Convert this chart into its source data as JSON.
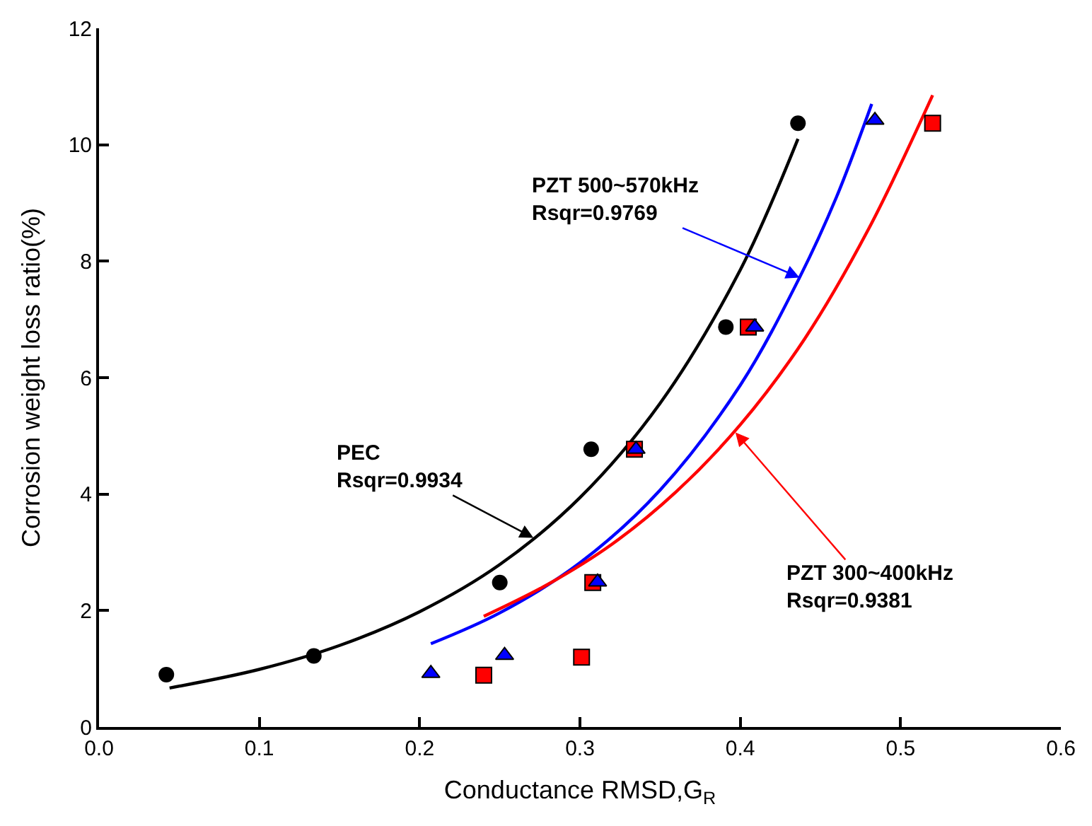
{
  "chart_data": {
    "type": "scatter",
    "xlabel": "Conductance RMSD,G$_{R}$",
    "ylabel": "Corrosion weight loss ratio(%)",
    "xlim": [
      0.0,
      0.6
    ],
    "xticks": [
      {
        "value": 0,
        "label": "0.0"
      },
      0.1,
      0.2,
      0.3,
      0.4,
      0.5,
      0.6
    ],
    "ylim": [
      0,
      12
    ],
    "yticks": [
      0,
      2,
      4,
      6,
      8,
      10,
      12
    ],
    "series": [
      {
        "marker": "circle",
        "color": "#000000",
        "x": [
          0.042,
          0.134,
          0.25,
          0.307,
          0.391,
          0.436
        ],
        "values": [
          0.9,
          1.22,
          2.48,
          4.77,
          6.87,
          10.37
        ]
      },
      {
        "marker": "triangle",
        "color": "#0000ff",
        "x": [
          0.207,
          0.253,
          0.311,
          0.335,
          0.409,
          0.484
        ],
        "values": [
          0.92,
          1.23,
          2.49,
          4.77,
          6.87,
          10.42
        ]
      },
      {
        "marker": "square",
        "color": "#ff0000",
        "x": [
          0.24,
          0.301,
          0.308,
          0.334,
          0.405,
          0.52
        ],
        "values": [
          0.89,
          1.2,
          2.48,
          4.77,
          6.87,
          10.37
        ]
      },
      {
        "type": "line",
        "marker": "none",
        "color": "#000000",
        "x": [
          0.044,
          0.1,
          0.15,
          0.2,
          0.25,
          0.3,
          0.35,
          0.4,
          0.436
        ],
        "values": [
          0.67,
          0.99,
          1.4,
          1.98,
          2.79,
          3.94,
          5.56,
          7.85,
          10.1
        ]
      },
      {
        "type": "line",
        "marker": "none",
        "color": "#0000ff",
        "x": [
          0.207,
          0.25,
          0.3,
          0.35,
          0.4,
          0.437,
          0.46,
          0.482
        ],
        "values": [
          1.43,
          1.96,
          2.82,
          4.07,
          5.87,
          7.72,
          9.1,
          10.7
        ]
      },
      {
        "type": "line",
        "marker": "none",
        "color": "#ff0000",
        "x": [
          0.24,
          0.28,
          0.32,
          0.36,
          0.4,
          0.44,
          0.48,
          0.52
        ],
        "values": [
          1.9,
          2.45,
          3.14,
          4.04,
          5.19,
          6.66,
          8.55,
          10.85
        ]
      }
    ],
    "annotations": [
      {
        "text": "PEC\nRsqr=0.9934",
        "x": 0.271,
        "y": 3.25
      },
      {
        "text": "PZT 500~570kHz\nRsqr=0.9769",
        "x": 0.437,
        "y": 7.72
      },
      {
        "text": "PZT 300~400kHz\nRsqr=0.9381",
        "x": 0.397,
        "y": 5.06
      }
    ]
  }
}
